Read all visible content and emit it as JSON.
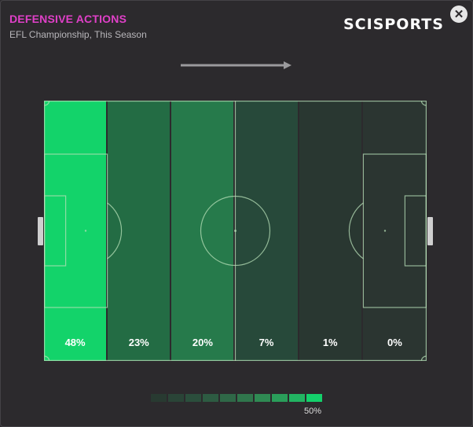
{
  "header": {
    "title": "DEFENSIVE ACTIONS",
    "subtitle": "EFL Championship, This Season",
    "logo_text": "SCISPORTS",
    "close_icon": "close-icon"
  },
  "direction_icon": "right-arrow-icon",
  "zones": [
    {
      "label": "48%",
      "share": 48,
      "color": "#13d36a"
    },
    {
      "label": "23%",
      "share": 23,
      "color": "#236c44"
    },
    {
      "label": "20%",
      "share": 20,
      "color": "#267a4b"
    },
    {
      "label": "7%",
      "share": 7,
      "color": "#27493a"
    },
    {
      "label": "1%",
      "share": 1,
      "color": "#293731"
    },
    {
      "label": "0%",
      "share": 0,
      "color": "#2b3531"
    }
  ],
  "legend": {
    "colors": [
      "#283a31",
      "#2a4437",
      "#2b4e3c",
      "#2d5b42",
      "#2f6847",
      "#30764c",
      "#2f8a53",
      "#2a9e5a",
      "#22b462",
      "#14d06b"
    ],
    "max_label": "50%"
  },
  "colors": {
    "title_accent": "#e040c8",
    "pitch_lines": "#b8e0b8"
  }
}
